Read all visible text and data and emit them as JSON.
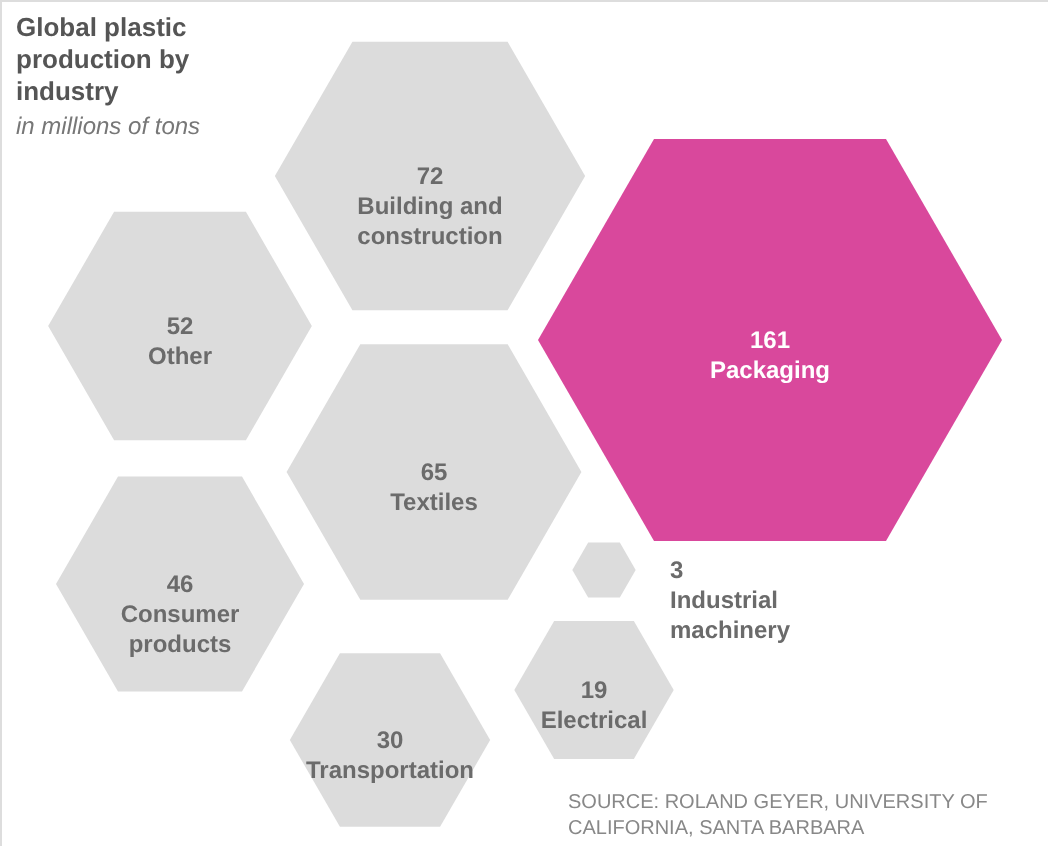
{
  "chart_data": {
    "type": "other",
    "title": "Global plastic production by industry",
    "subtitle": "in millions of tons",
    "categories": [
      "Building and construction",
      "Other",
      "Packaging",
      "Textiles",
      "Consumer products",
      "Industrial machinery",
      "Electrical",
      "Transportation"
    ],
    "values": [
      72,
      52,
      161,
      65,
      46,
      3,
      19,
      30
    ],
    "colors": [
      "#dcdcdc",
      "#dcdcdc",
      "#d9489c",
      "#dcdcdc",
      "#dcdcdc",
      "#dcdcdc",
      "#dcdcdc",
      "#dcdcdc"
    ],
    "data_labels": true,
    "annotations": [
      "SOURCE: ROLAND GEYER, UNIVERSITY OF CALIFORNIA, SANTA BARBARA"
    ]
  }
}
